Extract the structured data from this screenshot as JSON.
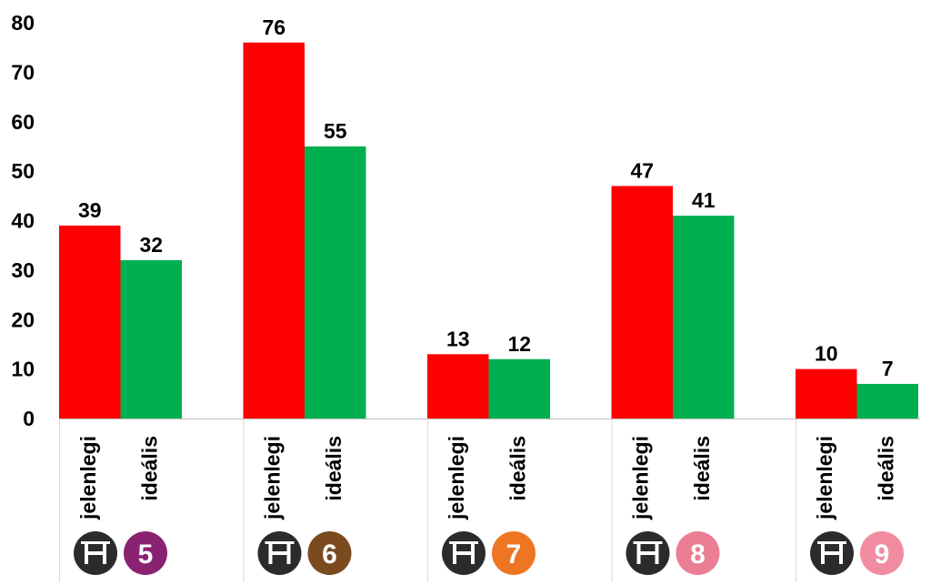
{
  "chart_data": {
    "type": "bar",
    "title": "",
    "xlabel": "",
    "ylabel": "",
    "ylim": [
      0,
      80
    ],
    "yticks": [
      0,
      10,
      20,
      30,
      40,
      50,
      60,
      70,
      80
    ],
    "grid": false,
    "legend": "none",
    "groups": [
      {
        "badge_number": "5",
        "badge_color": "#8a2272",
        "bars": [
          {
            "label": "jelenlegi",
            "value": 39
          },
          {
            "label": "ideális",
            "value": 32
          }
        ]
      },
      {
        "badge_number": "6",
        "badge_color": "#7b4a1e",
        "bars": [
          {
            "label": "jelenlegi",
            "value": 76
          },
          {
            "label": "ideális",
            "value": 55
          }
        ]
      },
      {
        "badge_number": "7",
        "badge_color": "#ee7623",
        "bars": [
          {
            "label": "jelenlegi",
            "value": 13
          },
          {
            "label": "ideális",
            "value": 12
          }
        ]
      },
      {
        "badge_number": "8",
        "badge_color": "#ec7e93",
        "bars": [
          {
            "label": "jelenlegi",
            "value": 47
          },
          {
            "label": "ideális",
            "value": 41
          }
        ]
      },
      {
        "badge_number": "9",
        "badge_color": "#f08ba0",
        "bars": [
          {
            "label": "jelenlegi",
            "value": 10
          },
          {
            "label": "ideális",
            "value": 7
          }
        ]
      }
    ],
    "series_colors": {
      "jelenlegi": "#ff0000",
      "ideális": "#00b050"
    },
    "route_icon": "h-route-icon",
    "route_icon_color": "#2b2b2b"
  }
}
